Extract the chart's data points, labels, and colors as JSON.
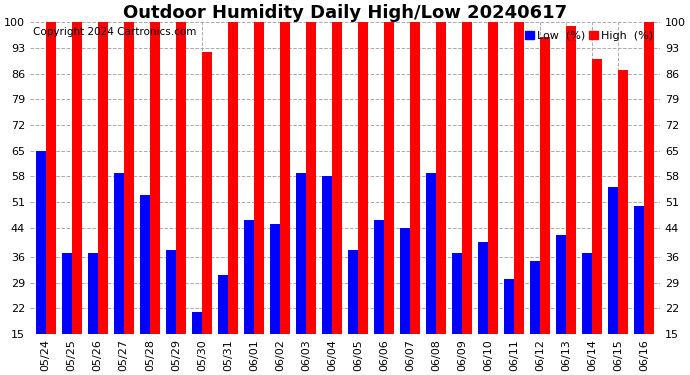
{
  "title": "Outdoor Humidity Daily High/Low 20240617",
  "copyright": "Copyright 2024 Cartronics.com",
  "legend_low_label": "Low  (%)",
  "legend_high_label": "High  (%)",
  "dates": [
    "05/24",
    "05/25",
    "05/26",
    "05/27",
    "05/28",
    "05/29",
    "05/30",
    "05/31",
    "06/01",
    "06/02",
    "06/03",
    "06/04",
    "06/05",
    "06/06",
    "06/07",
    "06/08",
    "06/09",
    "06/10",
    "06/11",
    "06/12",
    "06/13",
    "06/14",
    "06/15",
    "06/16"
  ],
  "high": [
    100,
    100,
    100,
    100,
    100,
    100,
    92,
    100,
    100,
    100,
    100,
    100,
    100,
    100,
    100,
    100,
    100,
    100,
    100,
    96,
    99,
    90,
    87,
    100
  ],
  "low": [
    65,
    37,
    37,
    59,
    53,
    38,
    21,
    31,
    46,
    45,
    59,
    58,
    38,
    46,
    44,
    59,
    37,
    40,
    30,
    35,
    42,
    37,
    55,
    50
  ],
  "high_color": "#ff0000",
  "low_color": "#0000ff",
  "bg_color": "#ffffff",
  "grid_color": "#aaaaaa",
  "ylim_min": 15,
  "ylim_max": 100,
  "yticks": [
    15,
    22,
    29,
    36,
    44,
    51,
    58,
    65,
    72,
    79,
    86,
    93,
    100
  ],
  "title_fontsize": 13,
  "tick_fontsize": 8,
  "copyright_fontsize": 7.5,
  "bar_bottom": 15
}
